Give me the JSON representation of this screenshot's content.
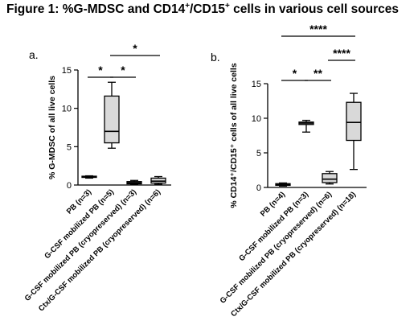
{
  "figure": {
    "title_prefix": "Figure 1: %G-MDSC and CD14",
    "title_sup1": "+",
    "title_mid": "/CD15",
    "title_sup2": "+",
    "title_suffix": " cells in various cell sources"
  },
  "chart_data": [
    {
      "type": "box",
      "panel": "a.",
      "ylabel": "% G-MDSC of all live cells",
      "ylim": [
        0,
        15
      ],
      "yticks": [
        "0",
        "5",
        "10",
        "15"
      ],
      "categories": [
        "PB (n=3)",
        "G-CSF mobilized PB (n=5)",
        "G-CSF mobilized PB (cryopreserved) (n=3)",
        "Ctx/G-CSF mobilized PB (cryopreserved) (n=6)"
      ],
      "boxes": [
        {
          "min": 0.9,
          "q1": 1.0,
          "median": 1.05,
          "q3": 1.15,
          "max": 1.2
        },
        {
          "min": 4.8,
          "q1": 5.5,
          "median": 7.0,
          "q3": 11.6,
          "max": 13.4
        },
        {
          "min": 0.1,
          "q1": 0.15,
          "median": 0.3,
          "q3": 0.45,
          "max": 0.6
        },
        {
          "min": 0.1,
          "q1": 0.25,
          "median": 0.5,
          "q3": 0.9,
          "max": 1.1
        }
      ],
      "significance": [
        {
          "from": 0,
          "to": 1,
          "label": "*"
        },
        {
          "from": 1,
          "to": 2,
          "label": "*"
        },
        {
          "from": 1,
          "to": 3,
          "label": "*"
        }
      ]
    },
    {
      "type": "box",
      "panel": "b.",
      "ylabel": "% CD14⁺/CD15⁺ cells of all live cells",
      "ylim": [
        0,
        15
      ],
      "yticks": [
        "0",
        "5",
        "10",
        "15"
      ],
      "categories": [
        "PB (n=4)",
        "G-CSF mobilized PB (n=3)",
        "G-CSF mobilized PB (cryopreserved) (n=6)",
        "Ctx/G-CSF mobilized PB (cryopreserved) (n=18)"
      ],
      "boxes": [
        {
          "min": 0.2,
          "q1": 0.3,
          "median": 0.4,
          "q3": 0.55,
          "max": 0.65
        },
        {
          "min": 8.0,
          "q1": 9.1,
          "median": 9.3,
          "q3": 9.45,
          "max": 9.7
        },
        {
          "min": 0.5,
          "q1": 0.7,
          "median": 1.2,
          "q3": 2.0,
          "max": 2.3
        },
        {
          "min": 2.6,
          "q1": 6.8,
          "median": 9.4,
          "q3": 12.3,
          "max": 13.6
        }
      ],
      "significance": [
        {
          "from": 0,
          "to": 1,
          "label": "*"
        },
        {
          "from": 1,
          "to": 2,
          "label": "**"
        },
        {
          "from": 2,
          "to": 3,
          "label": "****"
        },
        {
          "from": 0,
          "to": 3,
          "label": "****"
        }
      ]
    }
  ],
  "style": {
    "box_fill": "#d9d9d9",
    "line": "#000000",
    "background": "#ffffff"
  }
}
